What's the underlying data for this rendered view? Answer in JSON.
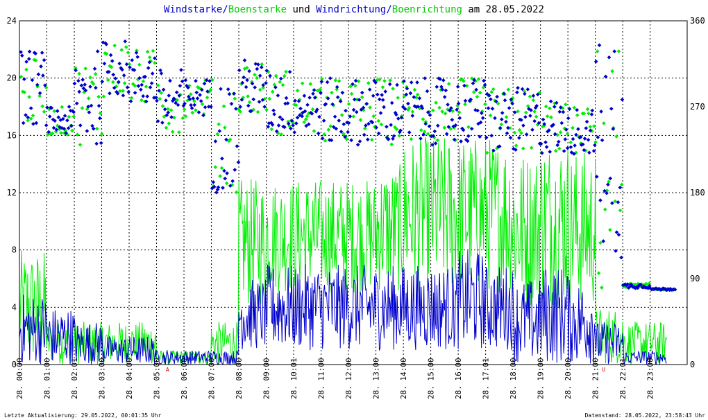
{
  "title": {
    "parts": [
      {
        "text": "Windstarke",
        "color": "#0000cc"
      },
      {
        "text": "/",
        "color": "#0000cc"
      },
      {
        "text": "Boenstarke",
        "color": "#00cc00"
      },
      {
        "text": " und ",
        "color": "#000000"
      },
      {
        "text": "Windrichtung",
        "color": "#0000cc"
      },
      {
        "text": "/",
        "color": "#0000cc"
      },
      {
        "text": "Boenrichtung",
        "color": "#00cc00"
      },
      {
        "text": " am 28.05.2022",
        "color": "#000000"
      }
    ]
  },
  "footer": {
    "left": "Letzte Aktualisierung: 29.05.2022, 00:01:35 Uhr",
    "right": "Datenstand: 28.05.2022, 23:58:43 Uhr"
  },
  "markers": [
    {
      "label": "A",
      "hour": 5.4,
      "color": "#cc0000"
    },
    {
      "label": "U",
      "hour": 21.3,
      "color": "#cc0000"
    }
  ],
  "colors": {
    "wind": "#0000cc",
    "gust": "#00ee00",
    "grid": "#000000"
  },
  "chart_data": {
    "type": "line",
    "x_ticks": [
      {
        "day": "28.",
        "time": "00:00"
      },
      {
        "day": "28.",
        "time": "01:00"
      },
      {
        "day": "28.",
        "time": "02:01"
      },
      {
        "day": "28.",
        "time": "03:00"
      },
      {
        "day": "28.",
        "time": "04:00"
      },
      {
        "day": "28.",
        "time": "05:00"
      },
      {
        "day": "28.",
        "time": "06:00"
      },
      {
        "day": "28.",
        "time": "07:00"
      },
      {
        "day": "28.",
        "time": "08:00"
      },
      {
        "day": "28.",
        "time": "09:00"
      },
      {
        "day": "28.",
        "time": "10:01"
      },
      {
        "day": "28.",
        "time": "11:00"
      },
      {
        "day": "28.",
        "time": "12:00"
      },
      {
        "day": "28.",
        "time": "13:00"
      },
      {
        "day": "28.",
        "time": "14:00"
      },
      {
        "day": "28.",
        "time": "15:00"
      },
      {
        "day": "28.",
        "time": "16:00"
      },
      {
        "day": "28.",
        "time": "17:01"
      },
      {
        "day": "28.",
        "time": "18:00"
      },
      {
        "day": "28.",
        "time": "19:00"
      },
      {
        "day": "28.",
        "time": "20:00"
      },
      {
        "day": "28.",
        "time": "21:00"
      },
      {
        "day": "28.",
        "time": "22:01"
      },
      {
        "day": "28.",
        "time": "23:00"
      }
    ],
    "x_range_hours": [
      0,
      24.35
    ],
    "y_left": {
      "ticks": [
        "0",
        "4",
        "8",
        "12",
        "16",
        "20",
        "24"
      ],
      "range": [
        0,
        24
      ]
    },
    "y_right": {
      "ticks": [
        "0",
        "90",
        "180",
        "270",
        "360"
      ],
      "range": [
        0,
        360
      ]
    },
    "series": [
      {
        "name": "Windstarke",
        "axis": "left",
        "style": "line",
        "color": "#0000cc",
        "hourly_typical_range": [
          [
            0,
            0,
            5
          ],
          [
            1,
            0,
            4
          ],
          [
            2,
            0,
            3
          ],
          [
            3,
            0,
            2
          ],
          [
            4,
            0,
            2
          ],
          [
            5,
            0,
            1
          ],
          [
            6,
            0,
            1
          ],
          [
            7,
            0,
            1
          ],
          [
            8,
            1,
            6
          ],
          [
            9,
            1,
            7
          ],
          [
            10,
            1,
            7
          ],
          [
            11,
            1,
            7
          ],
          [
            12,
            1,
            7
          ],
          [
            13,
            1,
            7
          ],
          [
            14,
            1,
            7
          ],
          [
            15,
            1,
            7
          ],
          [
            16,
            1,
            8
          ],
          [
            17,
            1,
            7
          ],
          [
            18,
            0,
            6
          ],
          [
            19,
            0,
            7
          ],
          [
            20,
            0,
            6
          ],
          [
            21,
            0,
            3
          ],
          [
            22,
            0,
            1
          ],
          [
            23,
            0,
            1
          ]
        ]
      },
      {
        "name": "Boenstarke",
        "axis": "left",
        "style": "line",
        "color": "#00ee00",
        "hourly_typical_range": [
          [
            0,
            0,
            8
          ],
          [
            1,
            0,
            3
          ],
          [
            2,
            0,
            3
          ],
          [
            3,
            0,
            3
          ],
          [
            4,
            0,
            3
          ],
          [
            5,
            0,
            1
          ],
          [
            6,
            0,
            1
          ],
          [
            7,
            0,
            3
          ],
          [
            8,
            4,
            13
          ],
          [
            9,
            5,
            13
          ],
          [
            10,
            5,
            13
          ],
          [
            11,
            5,
            13
          ],
          [
            12,
            5,
            13
          ],
          [
            13,
            5,
            14
          ],
          [
            14,
            5,
            16
          ],
          [
            15,
            5,
            16
          ],
          [
            16,
            5,
            16
          ],
          [
            17,
            5,
            16
          ],
          [
            18,
            4,
            15
          ],
          [
            19,
            4,
            16
          ],
          [
            20,
            4,
            15
          ],
          [
            21,
            0,
            4
          ],
          [
            22,
            0,
            3
          ],
          [
            23,
            0,
            3
          ]
        ]
      },
      {
        "name": "Windrichtung",
        "axis": "right",
        "style": "points",
        "color": "#0000cc",
        "hourly_typical_range_deg": [
          [
            0,
            250,
            330
          ],
          [
            1,
            240,
            270
          ],
          [
            2,
            230,
            330
          ],
          [
            3,
            280,
            340
          ],
          [
            4,
            270,
            330
          ],
          [
            5,
            240,
            310
          ],
          [
            6,
            260,
            300
          ],
          [
            7,
            180,
            300
          ],
          [
            8,
            260,
            320
          ],
          [
            9,
            240,
            310
          ],
          [
            10,
            240,
            300
          ],
          [
            11,
            230,
            300
          ],
          [
            12,
            230,
            300
          ],
          [
            13,
            230,
            300
          ],
          [
            14,
            230,
            300
          ],
          [
            15,
            230,
            300
          ],
          [
            16,
            230,
            300
          ],
          [
            17,
            220,
            290
          ],
          [
            18,
            220,
            290
          ],
          [
            19,
            220,
            280
          ],
          [
            20,
            220,
            270
          ],
          [
            21,
            100,
            340
          ],
          [
            22,
            80,
            85
          ],
          [
            23,
            78,
            80
          ]
        ]
      },
      {
        "name": "Boenrichtung",
        "axis": "right",
        "style": "points",
        "color": "#00ee00",
        "hourly_typical_range_deg": [
          [
            0,
            250,
            320
          ],
          [
            1,
            240,
            270
          ],
          [
            2,
            230,
            320
          ],
          [
            3,
            280,
            340
          ],
          [
            4,
            270,
            330
          ],
          [
            5,
            240,
            310
          ],
          [
            6,
            260,
            300
          ],
          [
            7,
            180,
            300
          ],
          [
            8,
            260,
            320
          ],
          [
            9,
            240,
            310
          ],
          [
            10,
            240,
            300
          ],
          [
            11,
            230,
            300
          ],
          [
            12,
            230,
            300
          ],
          [
            13,
            230,
            300
          ],
          [
            14,
            230,
            300
          ],
          [
            15,
            230,
            300
          ],
          [
            16,
            230,
            300
          ],
          [
            17,
            220,
            290
          ],
          [
            18,
            220,
            290
          ],
          [
            19,
            220,
            280
          ],
          [
            20,
            220,
            270
          ],
          [
            21,
            60,
            340
          ],
          [
            22,
            80,
            85
          ],
          [
            23,
            78,
            80
          ]
        ]
      }
    ]
  }
}
